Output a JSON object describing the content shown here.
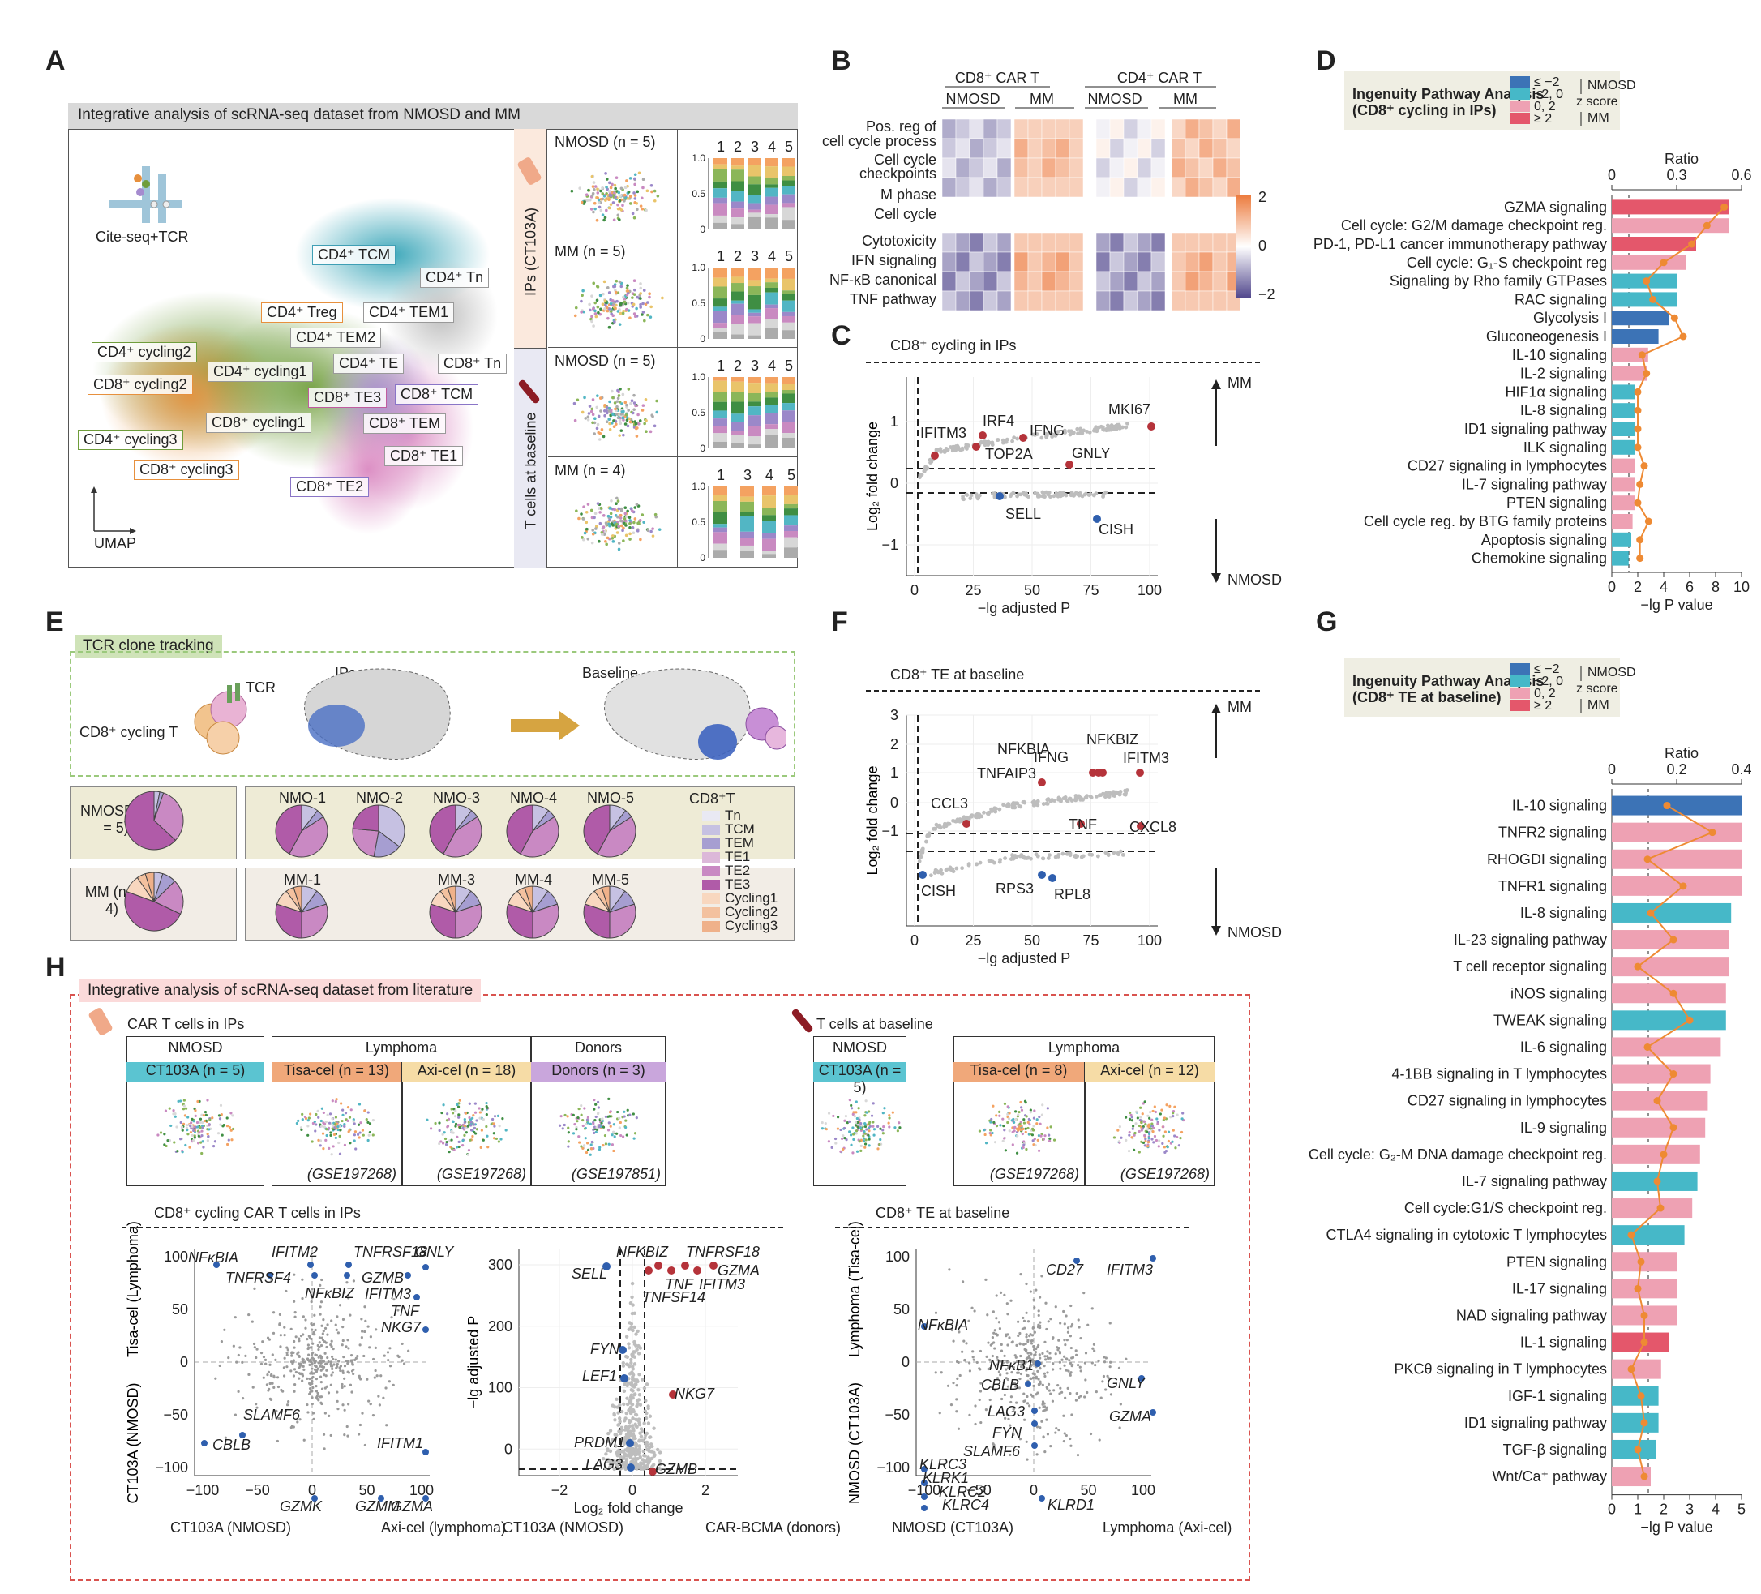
{
  "letters": [
    "A",
    "B",
    "C",
    "D",
    "E",
    "F",
    "G",
    "H"
  ],
  "panelA": {
    "header": "Integrative analysis of scRNA-seq dataset from NMOSD and MM",
    "cite_label": "Cite-seq+TCR",
    "umap_label": "UMAP",
    "side_label_top": "IPs (CT103A)",
    "side_label_bottom": "T cells at baseline",
    "cluster_labels": [
      "CD4⁺ TCM",
      "CD4⁺ Tn",
      "CD4⁺ Treg",
      "CD4⁺ TEM1",
      "CD4⁺ TEM2",
      "CD4⁺ cycling2",
      "CD4⁺ cycling1",
      "CD4⁺ TE",
      "CD8⁺ Tn",
      "CD8⁺ cycling2",
      "CD8⁺ TE3",
      "CD8⁺ TCM",
      "CD8⁺ cycling1",
      "CD8⁺ TEM",
      "CD4⁺ cycling3",
      "CD8⁺ TE1",
      "CD8⁺ cycling3",
      "CD8⁺ TE2"
    ],
    "sub_panels": [
      {
        "title": "NMOSD (n = 5)",
        "cols": [
          "1",
          "2",
          "3",
          "4",
          "5"
        ]
      },
      {
        "title": "MM (n = 5)",
        "cols": [
          "1",
          "2",
          "3",
          "4",
          "5"
        ]
      },
      {
        "title": "NMOSD (n = 5)",
        "cols": [
          "1",
          "2",
          "3",
          "4",
          "5"
        ]
      },
      {
        "title": "MM (n = 4)",
        "cols": [
          "1",
          "3",
          "4",
          "5"
        ]
      }
    ],
    "bar_ticks": [
      "1.0",
      "0.5",
      "0"
    ]
  },
  "panelB": {
    "groups": [
      "CD8⁺ CAR T",
      "CD4⁺ CAR T"
    ],
    "subgroups": [
      "NMOSD",
      "MM",
      "NMOSD",
      "MM"
    ],
    "rows_top": [
      "Pos. reg of cell cycle process",
      "Cell cycle checkpoints",
      "M phase",
      "Cell cycle"
    ],
    "rows_bottom": [
      "Cytotoxicity",
      "IFN signaling",
      "NF-κB canonical",
      "TNF pathway"
    ],
    "colorbar_ticks": [
      "2",
      "0",
      "−2"
    ]
  },
  "panelC": {
    "title": "CD8⁺ cycling in IPs",
    "xlabel": "−lg adjusted P",
    "ylabel": "Log₂ fold change",
    "up_label": "MM",
    "down_label": "NMOSD",
    "xticks": [
      "0",
      "25",
      "50",
      "75",
      "100"
    ],
    "yticks": [
      "1",
      "0",
      "−1"
    ],
    "genes": [
      "MKI67",
      "IRF4",
      "IFNG",
      "IFITM3",
      "TOP2A",
      "GNLY",
      "SELL",
      "CISH"
    ]
  },
  "panelD": {
    "legend_title": "Ingenuity Pathway Analysis (CD8⁺ cycling in IPs)",
    "legend_items": [
      "≤ −2",
      "−2, 0",
      "0, 2",
      "≥ 2"
    ],
    "legend_side": [
      "NMOSD",
      "z score",
      "MM"
    ],
    "ratio_label": "Ratio",
    "ratio_ticks": [
      "0",
      "0.3",
      "0.6"
    ],
    "xlabel": "−lg P value",
    "xticks": [
      "0",
      "2",
      "4",
      "6",
      "8",
      "10"
    ]
  },
  "panelE": {
    "header": "TCR clone tracking",
    "tcr": "TCR",
    "ips": "IPs",
    "baseline": "Baseline",
    "cell": "CD8⁺ cycling T",
    "groups": [
      "NMOSD (n = 5)",
      "MM (n = 4)"
    ],
    "samples_top": [
      "NMO-1",
      "NMO-2",
      "NMO-3",
      "NMO-4",
      "NMO-5"
    ],
    "samples_bottom": [
      "MM-1",
      "MM-3",
      "MM-4",
      "MM-5"
    ],
    "legend_title": "CD8⁺T",
    "legend": [
      "Tn",
      "TCM",
      "TEM",
      "TE1",
      "TE2",
      "TE3",
      "Cycling1",
      "Cycling2",
      "Cycling3"
    ]
  },
  "panelF": {
    "title": "CD8⁺ TE at baseline",
    "xlabel": "−lg adjusted P",
    "ylabel": "Log₂ fold change",
    "up_label": "MM",
    "down_label": "NMOSD",
    "xticks": [
      "0",
      "25",
      "50",
      "75",
      "100"
    ],
    "yticks": [
      "3",
      "2",
      "1",
      "0",
      "−1"
    ],
    "genes": [
      "IFNG",
      "NFKBIZ",
      "NFKBIA",
      "IFITM3",
      "TNFAIP3",
      "CCL3",
      "TNF",
      "CXCL8",
      "CISH",
      "RPS3",
      "RPL8"
    ]
  },
  "panelG": {
    "legend_title": "Ingenuity Pathway Analysis (CD8⁺ TE at baseline)",
    "legend_items": [
      "≤ −2",
      "−2, 0",
      "0, 2",
      "≥ 2"
    ],
    "legend_side": [
      "NMOSD",
      "z score",
      "MM"
    ],
    "ratio_label": "Ratio",
    "ratio_ticks": [
      "0",
      "0.2",
      "0.4"
    ],
    "xlabel": "−lg P value",
    "xticks": [
      "0",
      "1",
      "2",
      "3",
      "4",
      "5"
    ]
  },
  "panelH": {
    "header": "Integrative analysis of scRNA-seq dataset from literature",
    "car_label": "CAR T cells in IPs",
    "base_label": "T cells at baseline",
    "boxes_left": [
      {
        "head": "NMOSD",
        "cells": [
          "CT103A (n = 5)"
        ]
      },
      {
        "head": "Lymphoma",
        "cells": [
          "Tisa-cel (n = 13)",
          "Axi-cel (n = 18)"
        ],
        "notes": [
          "(GSE197268)",
          "(GSE197268)"
        ]
      },
      {
        "head": "Donors",
        "cells": [
          "Donors (n = 3)"
        ],
        "notes": [
          "(GSE197851)"
        ]
      }
    ],
    "boxes_right": [
      {
        "head": "NMOSD",
        "cells": [
          "CT103A (n = 5)"
        ]
      },
      {
        "head": "Lymphoma",
        "cells": [
          "Tisa-cel (n = 8)",
          "Axi-cel (n = 12)"
        ],
        "notes": [
          "(GSE197268)",
          "(GSE197268)"
        ]
      }
    ],
    "sub_title_left": "CD8⁺ cycling CAR T cells in IPs",
    "sub_title_right": "CD8⁺ TE at baseline",
    "scatter1": {
      "ytop": "Tisa-cel (Lymphoma)",
      "ybottom": "CT103A (NMOSD)",
      "xleft": "CT103A (NMOSD)",
      "xright": "Axi-cel (lymphoma)",
      "ticks": [
        "−100",
        "−50",
        "0",
        "50",
        "100"
      ],
      "genes": [
        "NFκBIA",
        "IFITM2",
        "TNFRSF18",
        "GNLY",
        "TNFRSF4",
        "NFκBIZ",
        "GZMB",
        "IFITM3",
        "TNF",
        "NKG7",
        "SLAMF6",
        "IFITM1",
        "CBLB",
        "GZMK",
        "GZMM",
        "GZMA"
      ]
    },
    "volcano": {
      "ylabel": "−lg adjusted P",
      "xlabel": "Log₂ fold change",
      "xleft": "CT103A (NMOSD)",
      "xright": "CAR-BCMA (donors)",
      "xticks": [
        "−2",
        "0",
        "2"
      ],
      "yticks": [
        "300",
        "200",
        "100",
        "0"
      ],
      "genes": [
        "NFKBIZ",
        "TNFRSF18",
        "GZMA",
        "SELL",
        "TNF",
        "IFITM3",
        "TNFSF14",
        "FYN",
        "LEF1",
        "NKG7",
        "PRDM1",
        "LAG3",
        "GZMB"
      ]
    },
    "scatter2": {
      "ytop": "Lymphoma (Tisa-cel)",
      "ybottom": "NMOSD (CT103A)",
      "xleft": "NMOSD (CT103A)",
      "xright": "Lymphoma (Axi-cel)",
      "ticks": [
        "−100",
        "−50",
        "0",
        "50",
        "100"
      ],
      "genes": [
        "CD27",
        "IFITM3",
        "NFκBIA",
        "NFκB1",
        "CBLB",
        "GNLY",
        "LAG3",
        "FYN",
        "GZMA",
        "SLAMF6",
        "KLRC3",
        "KLRK1",
        "KLRC2",
        "KLRC4",
        "KLRD1"
      ]
    }
  },
  "colors": {
    "nmosd_dark": "#3c73b6",
    "nmosd_light": "#46b8c8",
    "mm_light": "#eea1b3",
    "mm_dark": "#e4576b",
    "line": "#ee8a33",
    "red_pt": "#b5333a",
    "blue_pt": "#2f5fae"
  },
  "chart_data": [
    {
      "type": "bar",
      "title": "Ingenuity Pathway Analysis (CD8⁺ cycling in IPs)",
      "xlabel": "−lg P value",
      "categories": [
        "GZMA signaling",
        "Cell cycle: G2/M damage checkpoint reg.",
        "PD-1, PD-L1 cancer immunotherapy pathway",
        "Cell cycle: G₁-S checkpoint reg",
        "Signaling by Rho family GTPases",
        "RAC signaling",
        "Glycolysis I",
        "Gluconeogenesis I",
        "IL-10 signaling",
        "IL-2 signaling",
        "HIF1α signaling",
        "IL-8 signaling",
        "ID1 signaling pathway",
        "ILK signaling",
        "CD27 signaling in lymphocytes",
        "IL-7 signaling pathway",
        "PTEN signaling",
        "Cell cycle reg. by BTG family proteins",
        "Apoptosis signaling",
        "Chemokine signaling"
      ],
      "values": [
        9.0,
        9.0,
        6.5,
        5.7,
        5.0,
        5.0,
        4.4,
        3.6,
        2.8,
        2.7,
        1.8,
        1.8,
        1.8,
        1.8,
        1.8,
        1.8,
        1.8,
        1.6,
        1.5,
        1.3
      ],
      "zscore_class": [
        3,
        2,
        3,
        2,
        1,
        1,
        0,
        0,
        2,
        2,
        1,
        1,
        1,
        1,
        2,
        2,
        2,
        2,
        1,
        1
      ],
      "ratio": [
        0.52,
        0.44,
        0.37,
        0.24,
        0.16,
        0.19,
        0.29,
        0.33,
        0.14,
        0.16,
        0.12,
        0.12,
        0.12,
        0.12,
        0.15,
        0.13,
        0.12,
        0.17,
        0.13,
        0.13
      ],
      "ratio_range": [
        0,
        0.6
      ],
      "xlim": [
        0,
        10
      ]
    },
    {
      "type": "bar",
      "title": "Ingenuity Pathway Analysis (CD8⁺ TE at baseline)",
      "xlabel": "−lg P value",
      "categories": [
        "IL-10 signaling",
        "TNFR2 signaling",
        "RHOGDI signaling",
        "TNFR1 signaling",
        "IL-8 signaling",
        "IL-23 signaling pathway",
        "T cell receptor signaling",
        "iNOS signaling",
        "TWEAK signaling",
        "IL-6 signaling",
        "4-1BB signaling in T lymphocytes",
        "CD27 signaling in lymphocytes",
        "IL-9 signaling",
        "Cell cycle: G₂-M DNA damage checkpoint reg.",
        "IL-7 signaling pathway",
        "Cell cycle:G1/S checkpoint reg.",
        "CTLA4 signaling in cytotoxic T lymphocytes",
        "PTEN signaling",
        "IL-17 signaling",
        "NAD signaling pathway",
        "IL-1 signaling",
        "PKCθ signaling in T lymphocytes",
        "IGF-1 signaling",
        "ID1 signaling pathway",
        "TGF-β signaling",
        "Wnt/Ca⁺ pathway"
      ],
      "values": [
        5.0,
        5.0,
        5.0,
        5.0,
        4.6,
        4.5,
        4.5,
        4.4,
        4.4,
        4.2,
        3.8,
        3.7,
        3.6,
        3.4,
        3.3,
        3.1,
        2.8,
        2.5,
        2.5,
        2.5,
        2.2,
        1.9,
        1.8,
        1.8,
        1.7,
        1.5
      ],
      "zscore_class": [
        0,
        2,
        2,
        2,
        1,
        2,
        2,
        2,
        1,
        2,
        2,
        2,
        2,
        2,
        1,
        2,
        1,
        2,
        2,
        2,
        3,
        2,
        1,
        1,
        1,
        2
      ],
      "ratio": [
        0.17,
        0.31,
        0.11,
        0.22,
        0.12,
        0.19,
        0.08,
        0.19,
        0.24,
        0.11,
        0.19,
        0.14,
        0.19,
        0.16,
        0.14,
        0.15,
        0.06,
        0.09,
        0.08,
        0.1,
        0.1,
        0.06,
        0.09,
        0.1,
        0.08,
        0.1
      ],
      "ratio_range": [
        0,
        0.4
      ],
      "xlim": [
        0,
        5
      ]
    }
  ]
}
